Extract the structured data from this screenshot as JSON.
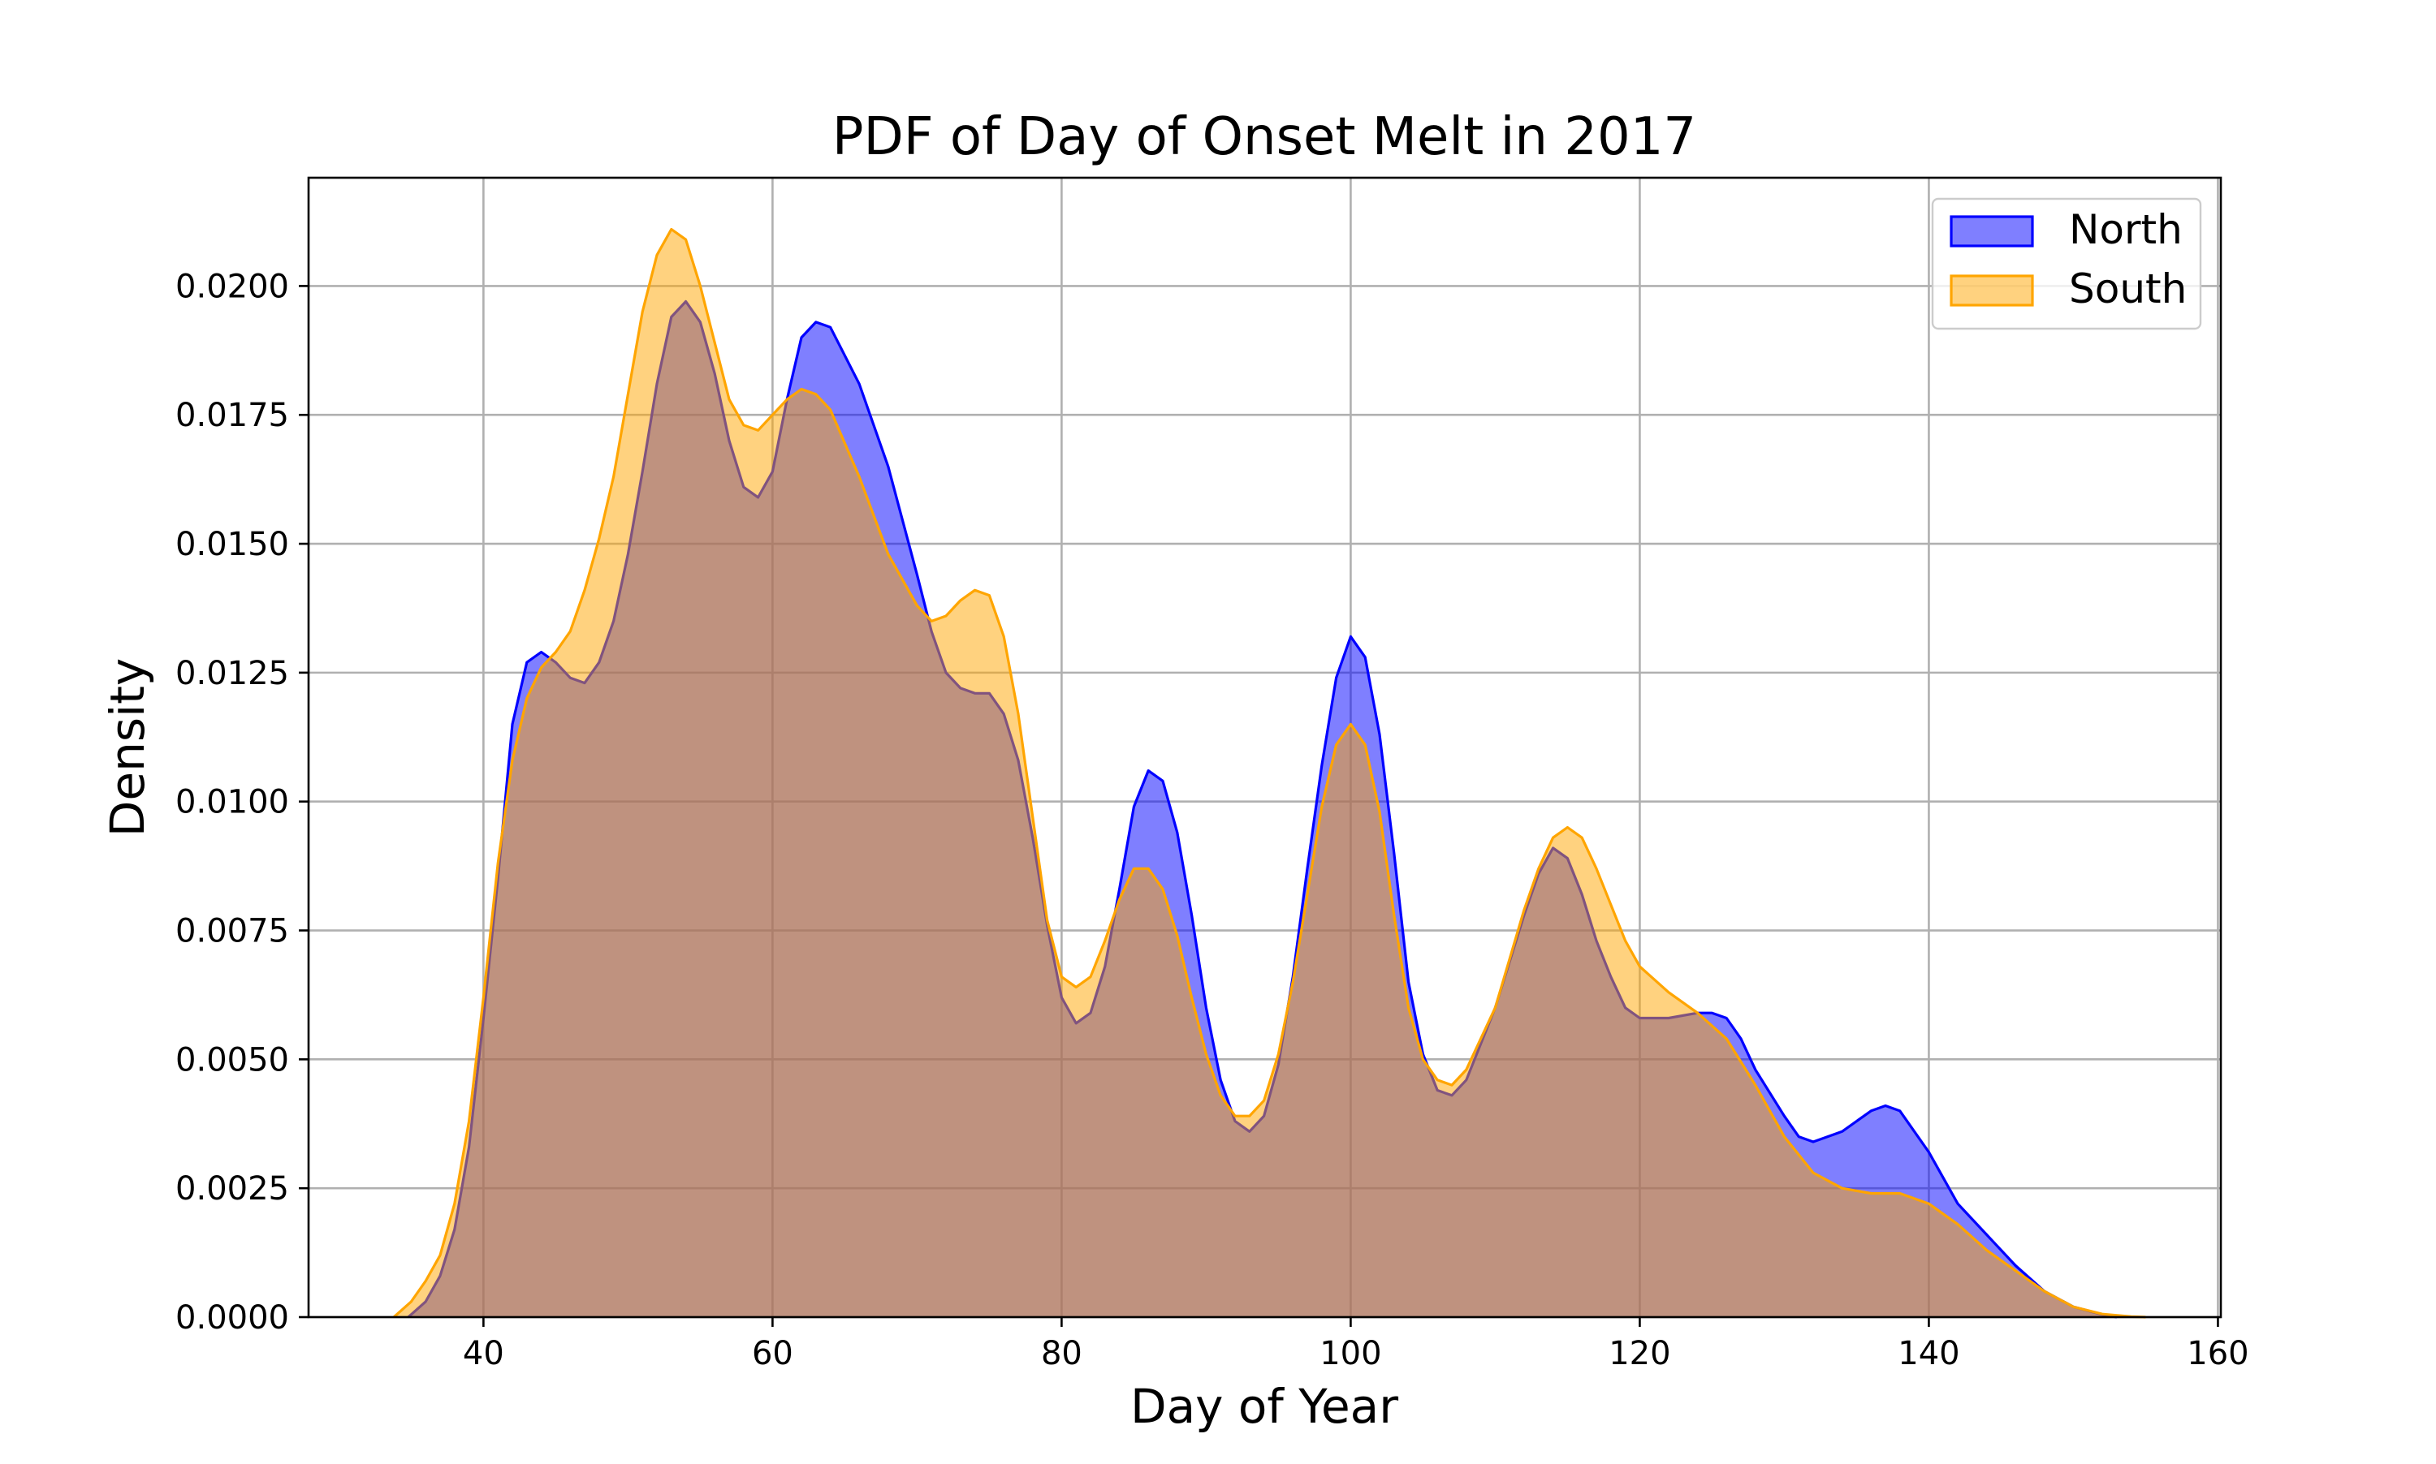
{
  "chart_data": {
    "type": "area",
    "title": "PDF of Day of Onset Melt in 2017",
    "xlabel": "Day of Year",
    "ylabel": "Density",
    "xlim": [
      27.9,
      160.2
    ],
    "ylim": [
      0,
      0.0221
    ],
    "xticks": [
      40,
      60,
      80,
      100,
      120,
      140,
      160
    ],
    "xtick_labels": [
      "40",
      "60",
      "80",
      "100",
      "120",
      "140",
      "160"
    ],
    "yticks": [
      0,
      0.0025,
      0.005,
      0.0075,
      0.01,
      0.0125,
      0.015,
      0.0175,
      0.02
    ],
    "ytick_labels": [
      "0.0000",
      "0.0025",
      "0.0050",
      "0.0075",
      "0.0100",
      "0.0125",
      "0.0150",
      "0.0175",
      "0.0200"
    ],
    "grid": true,
    "legend_position": "top-right",
    "series": [
      {
        "name": "North",
        "color": "#0000ff",
        "fill_opacity": 0.5,
        "points": [
          [
            34.8,
            0.0
          ],
          [
            36,
            0.0003
          ],
          [
            37,
            0.0008
          ],
          [
            38,
            0.0017
          ],
          [
            39,
            0.0033
          ],
          [
            40,
            0.0058
          ],
          [
            41,
            0.0085
          ],
          [
            42,
            0.0115
          ],
          [
            43,
            0.0127
          ],
          [
            44,
            0.0129
          ],
          [
            45,
            0.0127
          ],
          [
            46,
            0.0124
          ],
          [
            47,
            0.0123
          ],
          [
            48,
            0.0127
          ],
          [
            49,
            0.0135
          ],
          [
            50,
            0.0148
          ],
          [
            51,
            0.0164
          ],
          [
            52,
            0.0181
          ],
          [
            53,
            0.0194
          ],
          [
            54,
            0.0197
          ],
          [
            55,
            0.0193
          ],
          [
            56,
            0.0183
          ],
          [
            57,
            0.017
          ],
          [
            58,
            0.0161
          ],
          [
            59,
            0.0159
          ],
          [
            60,
            0.0164
          ],
          [
            61,
            0.0178
          ],
          [
            62,
            0.019
          ],
          [
            63,
            0.0193
          ],
          [
            64,
            0.0192
          ],
          [
            66,
            0.0181
          ],
          [
            68,
            0.0165
          ],
          [
            70,
            0.0144
          ],
          [
            71,
            0.0133
          ],
          [
            72,
            0.0125
          ],
          [
            73,
            0.0122
          ],
          [
            74,
            0.0121
          ],
          [
            75,
            0.0121
          ],
          [
            76,
            0.0117
          ],
          [
            77,
            0.0108
          ],
          [
            78,
            0.0093
          ],
          [
            79,
            0.0076
          ],
          [
            80,
            0.0062
          ],
          [
            81,
            0.0057
          ],
          [
            82,
            0.0059
          ],
          [
            83,
            0.0068
          ],
          [
            84,
            0.0083
          ],
          [
            85,
            0.0099
          ],
          [
            86,
            0.0106
          ],
          [
            87,
            0.0104
          ],
          [
            88,
            0.0094
          ],
          [
            89,
            0.0078
          ],
          [
            90,
            0.006
          ],
          [
            91,
            0.0046
          ],
          [
            92,
            0.0038
          ],
          [
            93,
            0.0036
          ],
          [
            94,
            0.0039
          ],
          [
            95,
            0.0049
          ],
          [
            96,
            0.0066
          ],
          [
            97,
            0.0087
          ],
          [
            98,
            0.0107
          ],
          [
            99,
            0.0124
          ],
          [
            100,
            0.0132
          ],
          [
            101,
            0.0128
          ],
          [
            102,
            0.0113
          ],
          [
            103,
            0.009
          ],
          [
            104,
            0.0065
          ],
          [
            105,
            0.0051
          ],
          [
            106,
            0.0044
          ],
          [
            107,
            0.0043
          ],
          [
            108,
            0.0046
          ],
          [
            110,
            0.006
          ],
          [
            112,
            0.0078
          ],
          [
            113,
            0.0086
          ],
          [
            114,
            0.0091
          ],
          [
            115,
            0.0089
          ],
          [
            116,
            0.0082
          ],
          [
            117,
            0.0073
          ],
          [
            118,
            0.0066
          ],
          [
            119,
            0.006
          ],
          [
            120,
            0.0058
          ],
          [
            122,
            0.0058
          ],
          [
            124,
            0.0059
          ],
          [
            125,
            0.0059
          ],
          [
            126,
            0.0058
          ],
          [
            127,
            0.0054
          ],
          [
            128,
            0.0048
          ],
          [
            130,
            0.0039
          ],
          [
            131,
            0.0035
          ],
          [
            132,
            0.0034
          ],
          [
            134,
            0.0036
          ],
          [
            136,
            0.004
          ],
          [
            137,
            0.0041
          ],
          [
            138,
            0.004
          ],
          [
            140,
            0.0032
          ],
          [
            142,
            0.0022
          ],
          [
            144,
            0.0016
          ],
          [
            146,
            0.001
          ],
          [
            148,
            0.0005
          ],
          [
            150,
            0.0002
          ],
          [
            152,
            5e-05
          ],
          [
            153,
            0.0
          ]
        ]
      },
      {
        "name": "South",
        "color": "#ffa500",
        "fill_opacity": 0.5,
        "points": [
          [
            33.8,
            0.0
          ],
          [
            35,
            0.0003
          ],
          [
            36,
            0.0007
          ],
          [
            37,
            0.0012
          ],
          [
            38,
            0.0022
          ],
          [
            39,
            0.0038
          ],
          [
            40,
            0.0062
          ],
          [
            41,
            0.0088
          ],
          [
            42,
            0.0108
          ],
          [
            43,
            0.012
          ],
          [
            44,
            0.0126
          ],
          [
            45,
            0.0129
          ],
          [
            46,
            0.0133
          ],
          [
            47,
            0.0141
          ],
          [
            48,
            0.0151
          ],
          [
            49,
            0.0163
          ],
          [
            50,
            0.0179
          ],
          [
            51,
            0.0195
          ],
          [
            52,
            0.0206
          ],
          [
            53,
            0.0211
          ],
          [
            54,
            0.0209
          ],
          [
            55,
            0.02
          ],
          [
            56,
            0.0189
          ],
          [
            57,
            0.0178
          ],
          [
            58,
            0.0173
          ],
          [
            59,
            0.0172
          ],
          [
            60,
            0.0175
          ],
          [
            61,
            0.0178
          ],
          [
            62,
            0.018
          ],
          [
            63,
            0.0179
          ],
          [
            64,
            0.0176
          ],
          [
            66,
            0.0163
          ],
          [
            68,
            0.0148
          ],
          [
            70,
            0.0138
          ],
          [
            71,
            0.0135
          ],
          [
            72,
            0.0136
          ],
          [
            73,
            0.0139
          ],
          [
            74,
            0.0141
          ],
          [
            75,
            0.014
          ],
          [
            76,
            0.0132
          ],
          [
            77,
            0.0117
          ],
          [
            78,
            0.0097
          ],
          [
            79,
            0.0077
          ],
          [
            80,
            0.0066
          ],
          [
            81,
            0.0064
          ],
          [
            82,
            0.0066
          ],
          [
            83,
            0.0073
          ],
          [
            84,
            0.0081
          ],
          [
            85,
            0.0087
          ],
          [
            86,
            0.0087
          ],
          [
            87,
            0.0083
          ],
          [
            88,
            0.0074
          ],
          [
            89,
            0.0062
          ],
          [
            90,
            0.0051
          ],
          [
            91,
            0.0043
          ],
          [
            92,
            0.0039
          ],
          [
            93,
            0.0039
          ],
          [
            94,
            0.0042
          ],
          [
            95,
            0.0051
          ],
          [
            96,
            0.0065
          ],
          [
            97,
            0.0082
          ],
          [
            98,
            0.0099
          ],
          [
            99,
            0.0111
          ],
          [
            100,
            0.0115
          ],
          [
            101,
            0.0111
          ],
          [
            102,
            0.0098
          ],
          [
            103,
            0.0078
          ],
          [
            104,
            0.006
          ],
          [
            105,
            0.005
          ],
          [
            106,
            0.0046
          ],
          [
            107,
            0.0045
          ],
          [
            108,
            0.0048
          ],
          [
            110,
            0.006
          ],
          [
            112,
            0.0079
          ],
          [
            113,
            0.0087
          ],
          [
            114,
            0.0093
          ],
          [
            115,
            0.0095
          ],
          [
            116,
            0.0093
          ],
          [
            117,
            0.0087
          ],
          [
            118,
            0.008
          ],
          [
            119,
            0.0073
          ],
          [
            120,
            0.0068
          ],
          [
            122,
            0.0063
          ],
          [
            124,
            0.0059
          ],
          [
            126,
            0.0054
          ],
          [
            128,
            0.0045
          ],
          [
            130,
            0.0035
          ],
          [
            132,
            0.0028
          ],
          [
            134,
            0.0025
          ],
          [
            136,
            0.0024
          ],
          [
            138,
            0.0024
          ],
          [
            140,
            0.0022
          ],
          [
            142,
            0.0018
          ],
          [
            144,
            0.0013
          ],
          [
            146,
            0.0009
          ],
          [
            148,
            0.0005
          ],
          [
            150,
            0.0002
          ],
          [
            152,
            6e-05
          ],
          [
            154,
            1e-05
          ],
          [
            155,
            0.0
          ]
        ]
      }
    ]
  }
}
